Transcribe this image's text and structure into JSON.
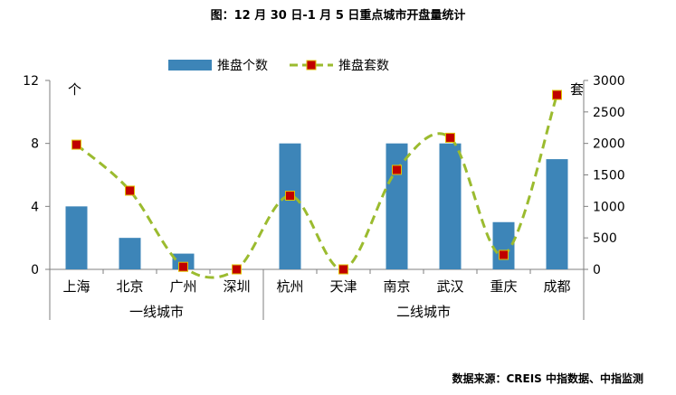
{
  "title": "图：12 月 30 日-1 月 5 日重点城市开盘量统计",
  "source": "数据来源：CREIS 中指数据、中指监测",
  "chart_data": {
    "type": "bar",
    "categories": [
      "上海",
      "北京",
      "广州",
      "深圳",
      "杭州",
      "天津",
      "南京",
      "武汉",
      "重庆",
      "成都"
    ],
    "groups": [
      {
        "label": "一线城市",
        "count": 4
      },
      {
        "label": "二线城市",
        "count": 6
      }
    ],
    "series": [
      {
        "name": "推盘个数",
        "type": "bar",
        "axis": "left",
        "color": "#3d85b8",
        "values": [
          4,
          2,
          1,
          0,
          8,
          0,
          8,
          8,
          3,
          7
        ]
      },
      {
        "name": "推盘套数",
        "type": "line",
        "axis": "right",
        "color": "#9bbb2f",
        "marker_color": "#c00000",
        "values": [
          1980,
          1250,
          40,
          0,
          1170,
          0,
          1580,
          2090,
          230,
          2770
        ]
      }
    ],
    "y_left": {
      "min": 0,
      "max": 12,
      "ticks": [
        0,
        4,
        8,
        12
      ],
      "unit": "个"
    },
    "y_right": {
      "min": 0,
      "max": 3000,
      "ticks": [
        0,
        500,
        1000,
        1500,
        2000,
        2500,
        3000
      ],
      "unit": "套"
    },
    "legend_position": "top-center",
    "grid": false
  }
}
